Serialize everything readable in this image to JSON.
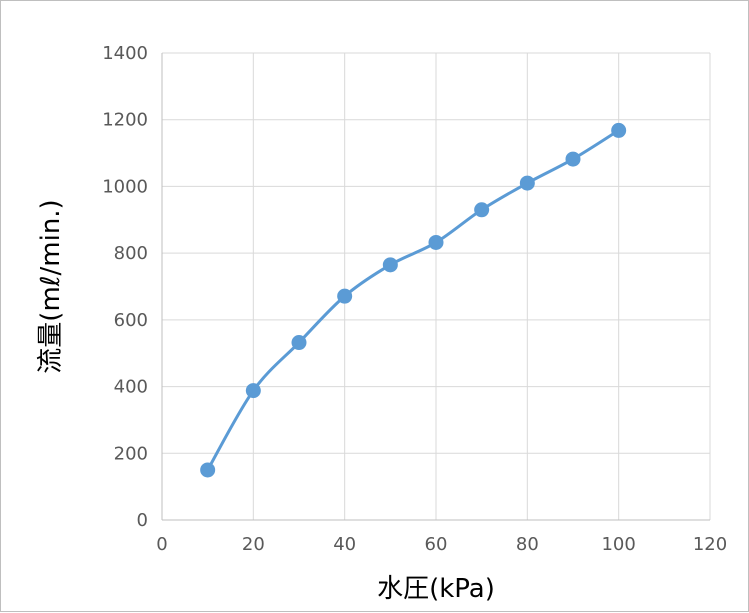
{
  "chart_data": {
    "type": "scatter",
    "mode": "smooth-line-with-markers",
    "xlabel": "水圧(kPa)",
    "ylabel": "流量(mℓ/min.)",
    "xlim": [
      0,
      120
    ],
    "ylim": [
      0,
      1400
    ],
    "xticks": [
      0,
      20,
      40,
      60,
      80,
      100,
      120
    ],
    "yticks": [
      0,
      200,
      400,
      600,
      800,
      1000,
      1200,
      1400
    ],
    "grid": true,
    "legend": "none",
    "series": [
      {
        "color": "#5b9bd5",
        "x": [
          10,
          20,
          30,
          40,
          50,
          60,
          70,
          80,
          90,
          100
        ],
        "y": [
          150,
          388,
          532,
          671,
          765,
          832,
          930,
          1010,
          1082,
          1168
        ]
      }
    ]
  }
}
